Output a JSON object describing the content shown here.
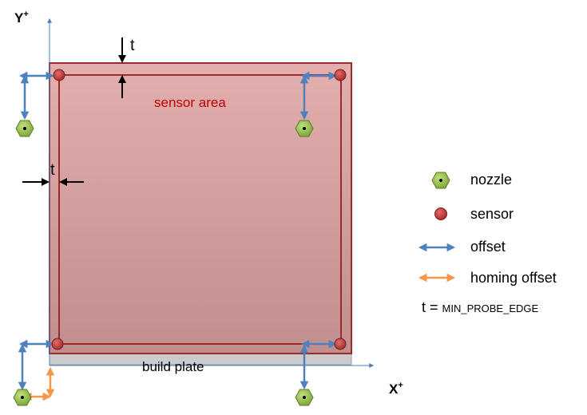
{
  "axes": {
    "y_label": "Y",
    "y_sup": "+",
    "x_label": "X",
    "x_sup": "+"
  },
  "labels": {
    "sensor_area": "sensor area",
    "build_plate": "build plate",
    "thickness_top": "t",
    "thickness_left": "t"
  },
  "legend": {
    "nozzle": "nozzle",
    "sensor": "sensor",
    "offset": "offset",
    "homing_offset": "homing offset",
    "t_def_prefix": "t = ",
    "t_def_value": "MIN_PROBE_EDGE"
  },
  "icons": {
    "nozzle": "hexagon-nozzle-icon",
    "sensor": "circle-sensor-icon",
    "offset": "double-arrow-icon",
    "homing_offset": "double-arrow-icon"
  },
  "colors": {
    "sensor_area_top": "#e3aeae",
    "sensor_area_bottom": "#c08e8e",
    "sensor_border": "#9b2a2a",
    "sensor_text": "#c00000",
    "nozzle_fill": "#8fbc3f",
    "offset_arrow": "#4f81bd",
    "homing_arrow": "#f79646",
    "axis": "#4f81bd",
    "plate": "#c9cbcc"
  }
}
